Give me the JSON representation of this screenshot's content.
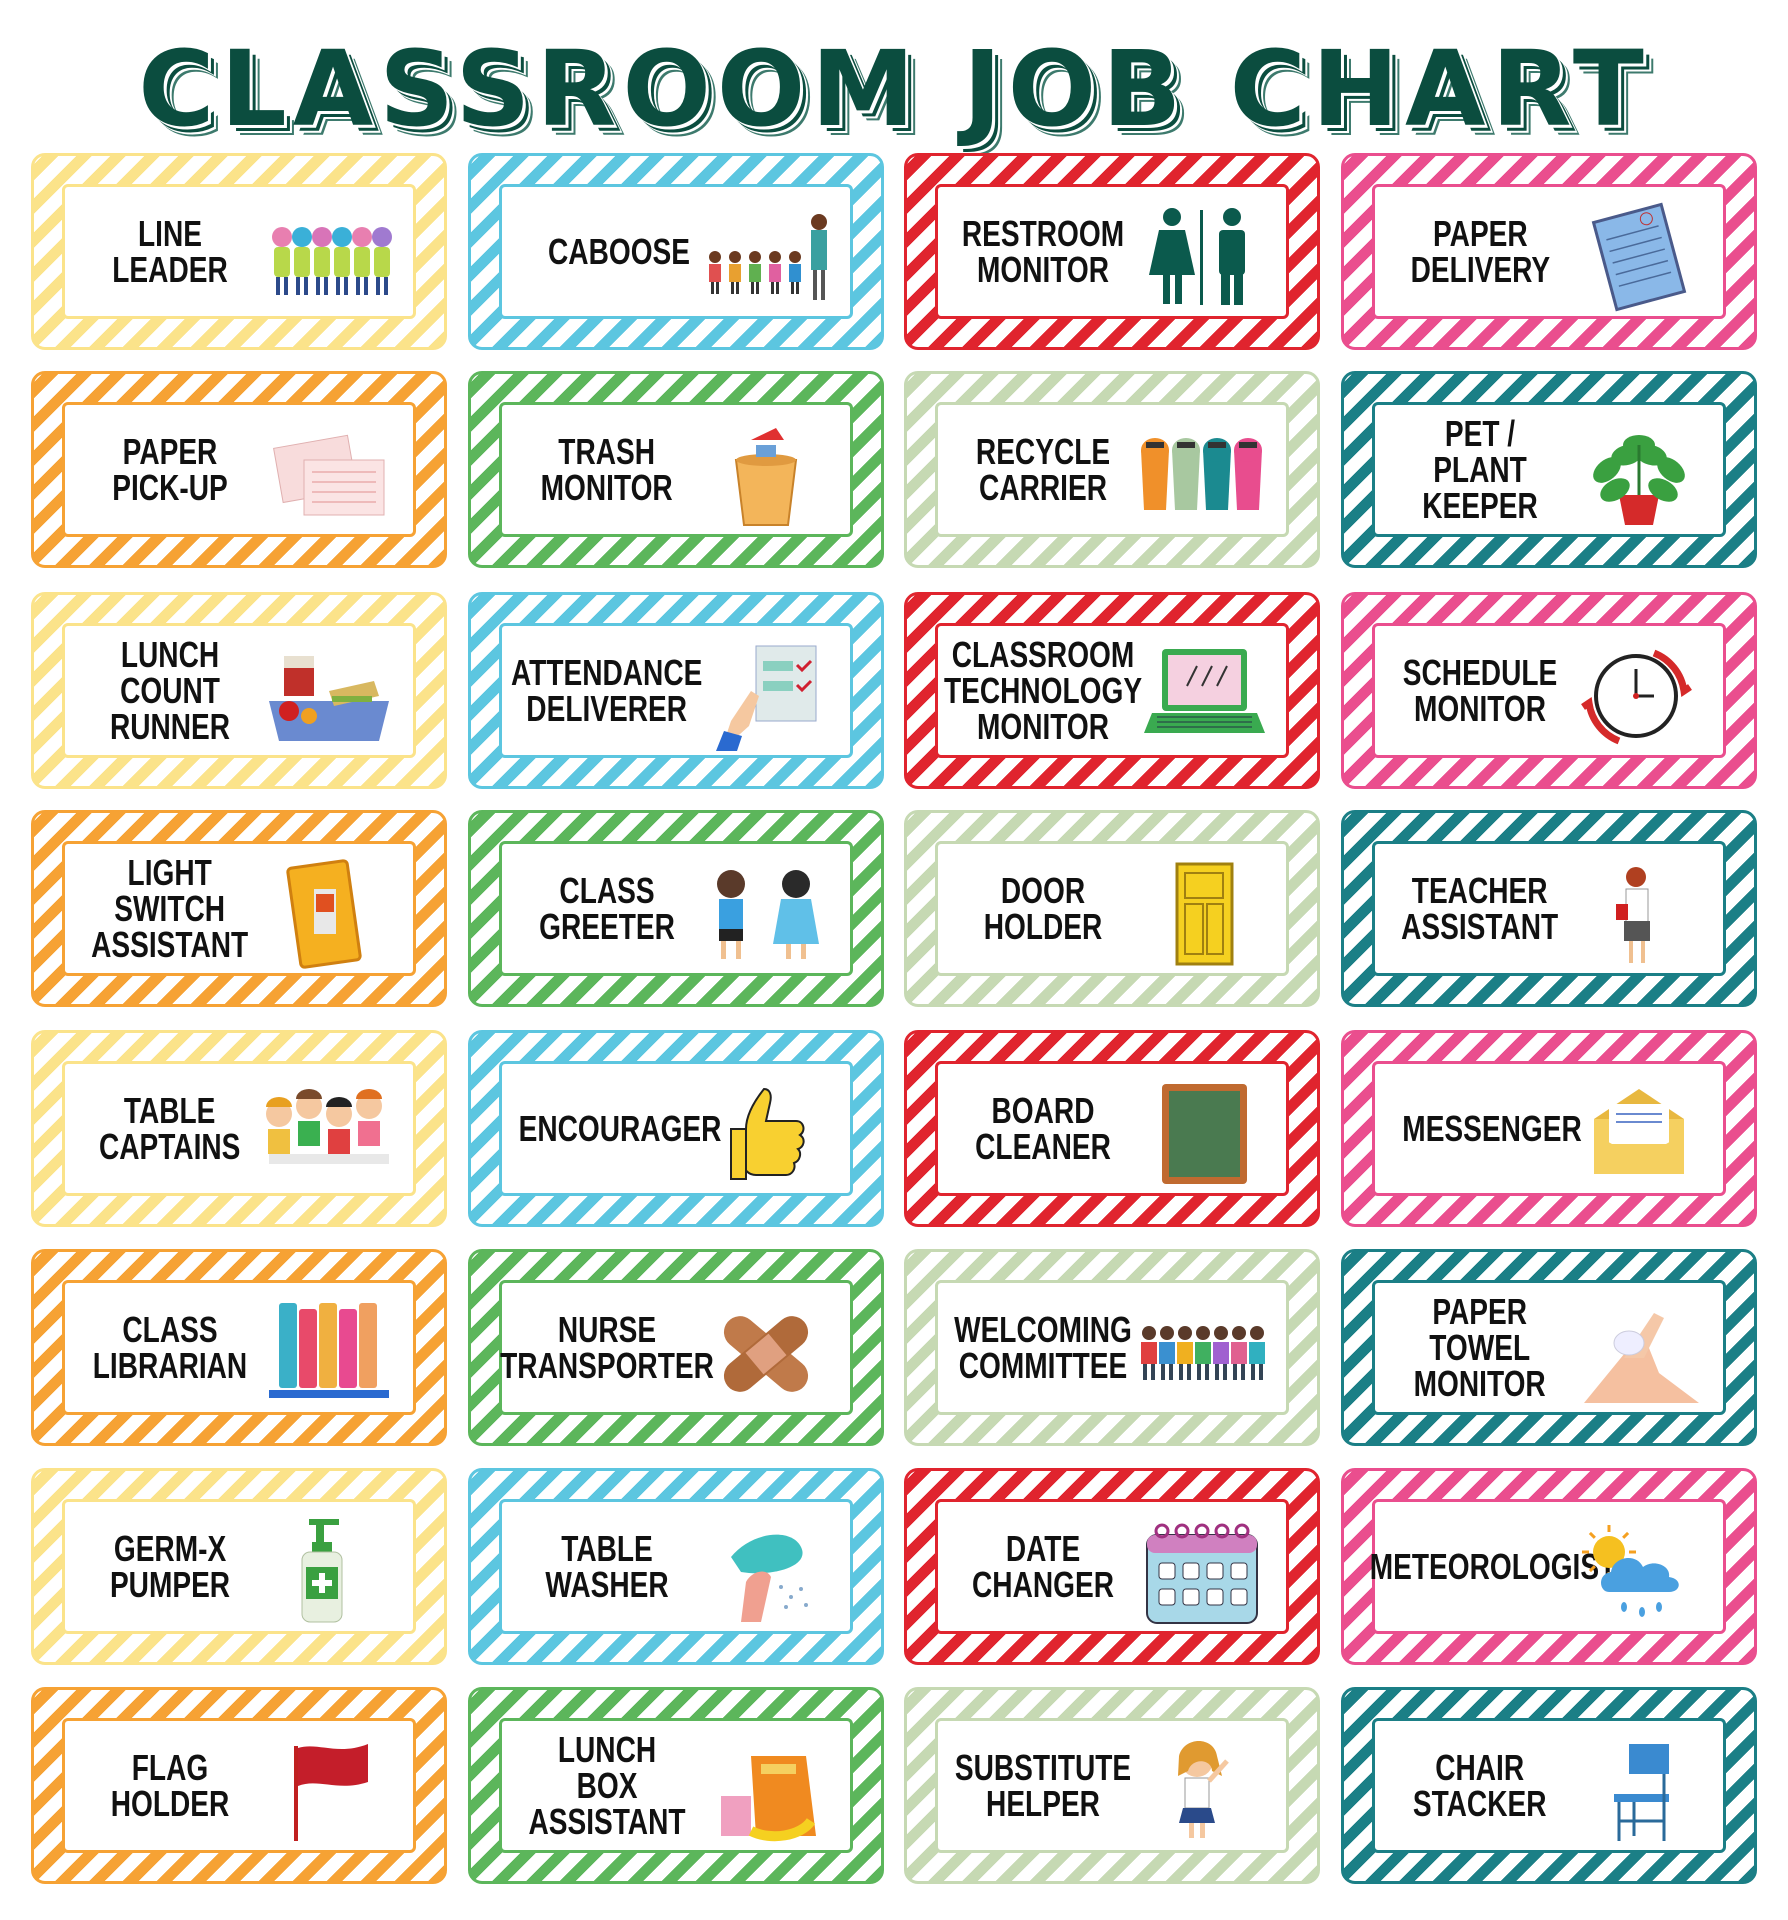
{
  "title": "CLASSROOM JOB CHART",
  "colors": {
    "yellow": "#fbe38a",
    "orange": "#f6a234",
    "blue": "#5cc6e0",
    "green": "#5cb65b",
    "red": "#e0242e",
    "sage": "#c6d9b3",
    "pink": "#ea4e8e",
    "teal": "#1b7f86",
    "title": "#0b4d3f"
  },
  "cards": [
    {
      "label": "Line\nLeader",
      "color": "yellow",
      "icon": "children-walking-icon"
    },
    {
      "label": "Caboose",
      "color": "blue",
      "icon": "children-line-icon"
    },
    {
      "label": "Restroom\nMonitor",
      "color": "red",
      "icon": "restroom-sign-icon"
    },
    {
      "label": "Paper\nDelivery",
      "color": "pink",
      "icon": "notebook-icon"
    },
    {
      "label": "Paper\nPick-Up",
      "color": "orange",
      "icon": "papers-icon"
    },
    {
      "label": "Trash\nMonitor",
      "color": "green",
      "icon": "trash-can-icon"
    },
    {
      "label": "Recycle\nCarrier",
      "color": "sage",
      "icon": "recycle-bins-icon"
    },
    {
      "label": "Pet / Plant\nKeeper",
      "color": "teal",
      "icon": "potted-plant-icon"
    },
    {
      "label": "Lunch\nCount\nRunner",
      "color": "yellow",
      "icon": "lunch-tray-icon"
    },
    {
      "label": "Attendance\nDeliverer",
      "color": "blue",
      "icon": "checklist-icon"
    },
    {
      "label": "Classroom\nTechnology\nMonitor",
      "color": "red",
      "icon": "laptop-icon"
    },
    {
      "label": "Schedule\nMonitor",
      "color": "pink",
      "icon": "clock-icon"
    },
    {
      "label": "Light\nSwitch\nAssistant",
      "color": "orange",
      "icon": "light-switch-icon"
    },
    {
      "label": "Class\nGreeter",
      "color": "green",
      "icon": "children-waving-icon"
    },
    {
      "label": "Door\nHolder",
      "color": "sage",
      "icon": "door-icon"
    },
    {
      "label": "Teacher\nAssistant",
      "color": "teal",
      "icon": "teacher-icon"
    },
    {
      "label": "Table\nCaptains",
      "color": "yellow",
      "icon": "children-table-icon"
    },
    {
      "label": "Encourager",
      "color": "blue",
      "icon": "thumbs-up-icon"
    },
    {
      "label": "Board\nCleaner",
      "color": "red",
      "icon": "chalkboard-icon"
    },
    {
      "label": "Messenger",
      "color": "pink",
      "icon": "envelope-icon"
    },
    {
      "label": "Class\nLibrarian",
      "color": "orange",
      "icon": "books-icon"
    },
    {
      "label": "Nurse\nTransporter",
      "color": "green",
      "icon": "bandage-icon"
    },
    {
      "label": "Welcoming\nCommittee",
      "color": "sage",
      "icon": "welcome-kids-icon"
    },
    {
      "label": "Paper\nTowel\nMonitor",
      "color": "teal",
      "icon": "hands-washing-icon"
    },
    {
      "label": "Germ-X\nPumper",
      "color": "yellow",
      "icon": "sanitizer-icon"
    },
    {
      "label": "Table\nWasher",
      "color": "blue",
      "icon": "sponge-hand-icon"
    },
    {
      "label": "Date\nChanger",
      "color": "red",
      "icon": "calendar-icon"
    },
    {
      "label": "Meteorologist",
      "color": "pink",
      "icon": "weather-icon"
    },
    {
      "label": "Flag\nHolder",
      "color": "orange",
      "icon": "flag-icon"
    },
    {
      "label": "Lunch Box\nAssistant",
      "color": "green",
      "icon": "lunch-bag-icon"
    },
    {
      "label": "Substitute\nHelper",
      "color": "sage",
      "icon": "girl-student-icon"
    },
    {
      "label": "Chair\nStacker",
      "color": "teal",
      "icon": "chair-icon"
    }
  ]
}
